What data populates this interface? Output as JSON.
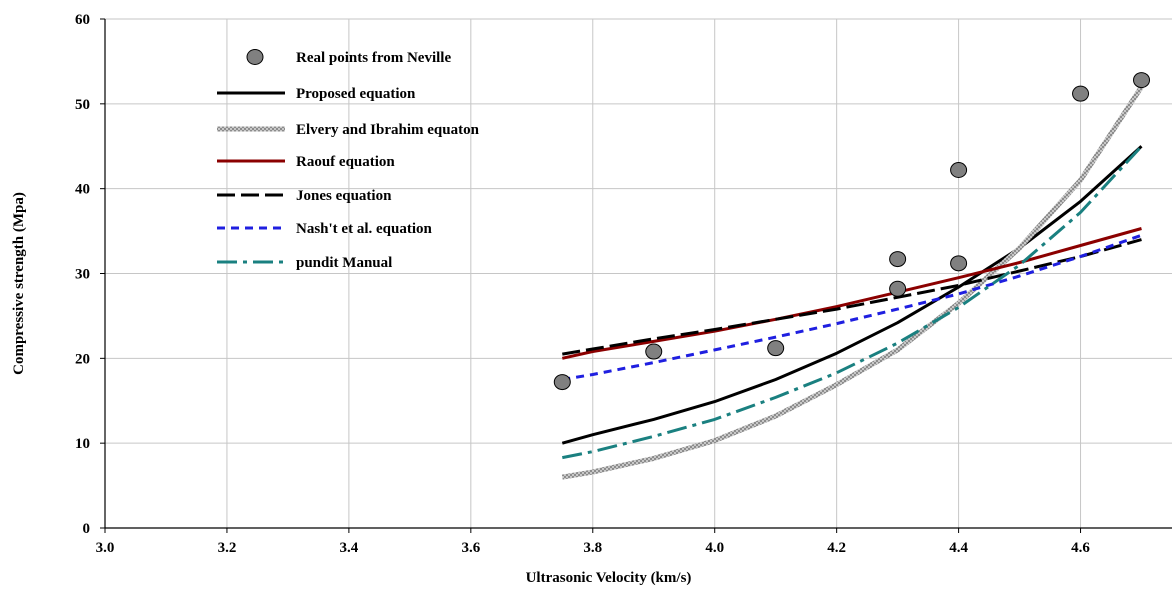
{
  "chart_data": {
    "type": "line",
    "title": "",
    "xlabel": "Ultrasonic Velocity (km/s)",
    "ylabel": "Compressive strength (Mpa)",
    "xlim": [
      3.0,
      4.75
    ],
    "ylim": [
      0,
      60
    ],
    "x_ticks": [
      "3.0",
      "3.2",
      "3.4",
      "3.6",
      "3.8",
      "4.0",
      "4.2",
      "4.4",
      "4.6"
    ],
    "y_ticks": [
      "0",
      "10",
      "20",
      "30",
      "40",
      "50",
      "60"
    ],
    "grid": true,
    "legend_position": "top-left",
    "series": [
      {
        "name": "Real points from Neville",
        "kind": "scatter",
        "color": "#808080",
        "points": [
          [
            3.75,
            17.2
          ],
          [
            3.9,
            20.8
          ],
          [
            4.1,
            21.2
          ],
          [
            4.3,
            31.7
          ],
          [
            4.3,
            28.2
          ],
          [
            4.4,
            42.2
          ],
          [
            4.4,
            31.2
          ],
          [
            4.6,
            51.2
          ],
          [
            4.7,
            52.8
          ]
        ]
      },
      {
        "name": "Proposed equation",
        "kind": "line",
        "style": "solid",
        "color": "#000000",
        "points": [
          [
            3.75,
            10.0
          ],
          [
            3.8,
            11.0
          ],
          [
            3.9,
            12.8
          ],
          [
            4.0,
            14.9
          ],
          [
            4.1,
            17.5
          ],
          [
            4.2,
            20.6
          ],
          [
            4.3,
            24.2
          ],
          [
            4.4,
            28.4
          ],
          [
            4.5,
            33.0
          ],
          [
            4.6,
            38.5
          ],
          [
            4.7,
            45.0
          ]
        ]
      },
      {
        "name": "Elvery and Ibrahim equaton",
        "kind": "line",
        "style": "textured",
        "color": "#a6a6a6",
        "points": [
          [
            3.75,
            6.0
          ],
          [
            3.8,
            6.6
          ],
          [
            3.9,
            8.2
          ],
          [
            4.0,
            10.3
          ],
          [
            4.1,
            13.2
          ],
          [
            4.2,
            16.9
          ],
          [
            4.3,
            21.0
          ],
          [
            4.4,
            26.5
          ],
          [
            4.5,
            33.0
          ],
          [
            4.6,
            41.0
          ],
          [
            4.7,
            52.0
          ]
        ]
      },
      {
        "name": "Raouf equation",
        "kind": "line",
        "style": "solid",
        "color": "#8b0000",
        "points": [
          [
            3.75,
            20.0
          ],
          [
            3.8,
            20.8
          ],
          [
            3.9,
            22.0
          ],
          [
            4.0,
            23.2
          ],
          [
            4.1,
            24.6
          ],
          [
            4.2,
            26.1
          ],
          [
            4.3,
            27.8
          ],
          [
            4.4,
            29.5
          ],
          [
            4.5,
            31.3
          ],
          [
            4.6,
            33.3
          ],
          [
            4.7,
            35.3
          ]
        ]
      },
      {
        "name": "Jones equation",
        "kind": "line",
        "style": "longdash",
        "color": "#000000",
        "points": [
          [
            3.75,
            20.5
          ],
          [
            3.8,
            21.1
          ],
          [
            3.9,
            22.3
          ],
          [
            4.0,
            23.4
          ],
          [
            4.1,
            24.6
          ],
          [
            4.2,
            25.8
          ],
          [
            4.3,
            27.2
          ],
          [
            4.4,
            28.6
          ],
          [
            4.5,
            30.3
          ],
          [
            4.6,
            32.0
          ],
          [
            4.7,
            34.0
          ]
        ]
      },
      {
        "name": "Nash't et al. equation",
        "kind": "line",
        "style": "dash",
        "color": "#1f1fe0",
        "points": [
          [
            3.75,
            17.5
          ],
          [
            3.8,
            18.1
          ],
          [
            3.9,
            19.5
          ],
          [
            4.0,
            21.0
          ],
          [
            4.1,
            22.5
          ],
          [
            4.2,
            24.1
          ],
          [
            4.3,
            25.8
          ],
          [
            4.4,
            27.6
          ],
          [
            4.5,
            29.7
          ],
          [
            4.6,
            32.0
          ],
          [
            4.7,
            34.5
          ]
        ]
      },
      {
        "name": "pundit Manual",
        "kind": "line",
        "style": "dashdot",
        "color": "#1a8080",
        "points": [
          [
            3.75,
            8.3
          ],
          [
            3.8,
            9.0
          ],
          [
            3.9,
            10.8
          ],
          [
            4.0,
            12.8
          ],
          [
            4.1,
            15.4
          ],
          [
            4.2,
            18.3
          ],
          [
            4.3,
            21.8
          ],
          [
            4.4,
            26.0
          ],
          [
            4.5,
            31.0
          ],
          [
            4.6,
            37.2
          ],
          [
            4.7,
            45.0
          ]
        ]
      }
    ]
  }
}
